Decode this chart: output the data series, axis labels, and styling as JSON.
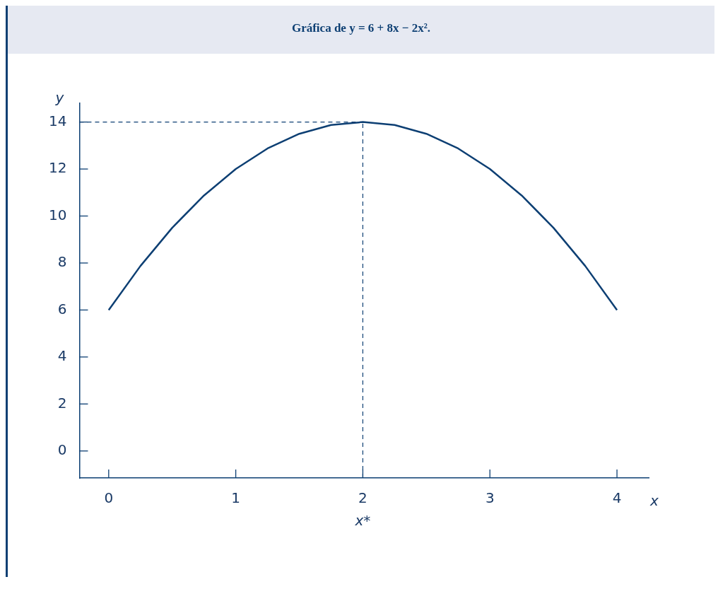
{
  "chart_data": {
    "type": "line",
    "title": "Gráfica de y = 6 + 8x − 2x².",
    "xlabel": "x",
    "ylabel": "y",
    "x": [
      0,
      0.25,
      0.5,
      0.75,
      1,
      1.25,
      1.5,
      1.75,
      2,
      2.25,
      2.5,
      2.75,
      3,
      3.25,
      3.5,
      3.75,
      4
    ],
    "series": [
      {
        "color": "#0d3f73",
        "values": [
          6,
          7.875,
          9.5,
          10.875,
          12,
          12.875,
          13.5,
          13.875,
          14,
          13.875,
          13.5,
          12.875,
          12,
          10.875,
          9.5,
          7.875,
          6
        ]
      }
    ],
    "xlim": [
      -0.23,
      4.25
    ],
    "xticks": [
      0,
      1,
      2,
      3,
      4
    ],
    "ylim": [
      -1.15,
      14.8
    ],
    "yticks": [
      0,
      2,
      4,
      6,
      8,
      10,
      12,
      14
    ],
    "ref_lines": [
      {
        "axis": "y",
        "value": 14,
        "line_style": "dashed",
        "color": "#0d3f73"
      },
      {
        "axis": "x",
        "value": 2,
        "label": "x*",
        "line_style": "dashed",
        "color": "#0d3f73"
      }
    ],
    "grid": false,
    "legend": false,
    "marker": "none",
    "line_style": "solid"
  }
}
